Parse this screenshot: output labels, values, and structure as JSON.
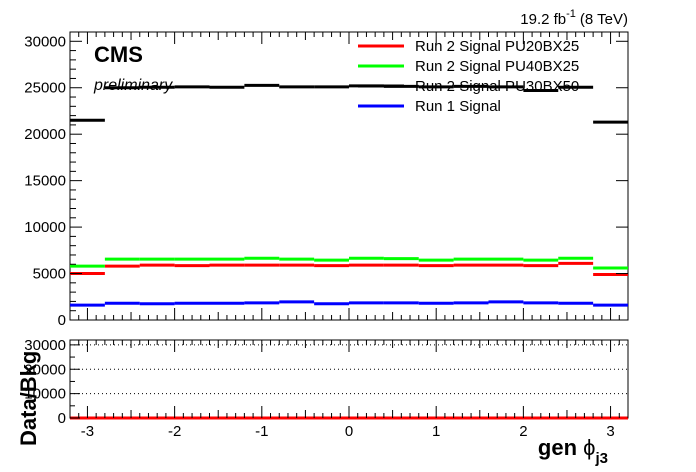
{
  "header": {
    "lumi_value": "19.2 fb",
    "lumi_exp": "-1",
    "lumi_energy": "(8 TeV)"
  },
  "labels": {
    "experiment": "CMS",
    "status": "preliminary"
  },
  "x_axis": {
    "title_main": "gen ",
    "title_greek": "ϕ",
    "title_sub": "j3"
  },
  "ratio_axis": {
    "title": "Data/Bkg"
  },
  "colors": {
    "run2_pu20": "#ff0000",
    "run2_pu40": "#00ff00",
    "run2_pu30": "#000000",
    "run1": "#0000ff"
  },
  "chart_data": [
    {
      "type": "histogram",
      "xlim": [
        -3.2,
        3.2
      ],
      "ylim": [
        0,
        31000
      ],
      "x_ticks": [
        -3,
        -2,
        -1,
        0,
        1,
        2,
        3
      ],
      "x_tick_labels": [
        "-3",
        "-2",
        "-1",
        "0",
        "1",
        "2",
        "3"
      ],
      "y_ticks": [
        0,
        5000,
        10000,
        15000,
        20000,
        25000,
        30000
      ],
      "y_tick_labels": [
        "0",
        "5000",
        "10000",
        "15000",
        "20000",
        "25000",
        "30000"
      ],
      "legend_position": "top-right",
      "bin_edges": [
        -3.2,
        -2.8,
        -2.4,
        -2.0,
        -1.6,
        -1.2,
        -0.8,
        -0.4,
        0.0,
        0.4,
        0.8,
        1.2,
        1.6,
        2.0,
        2.4,
        2.8,
        3.2
      ],
      "series": [
        {
          "name": "Run 2 Signal PU20BX25",
          "color": "#ff0000",
          "values": [
            5000,
            5800,
            5900,
            5850,
            5900,
            5900,
            5900,
            5850,
            5900,
            5900,
            5850,
            5900,
            5900,
            5850,
            6100,
            4900
          ]
        },
        {
          "name": "Run 2 Signal PU40BX25",
          "color": "#00ff00",
          "values": [
            5800,
            6550,
            6550,
            6550,
            6550,
            6650,
            6550,
            6450,
            6650,
            6600,
            6450,
            6550,
            6550,
            6450,
            6650,
            5600
          ]
        },
        {
          "name": "Run 2 Signal PU30BX50",
          "color": "#000000",
          "values": [
            21500,
            25000,
            25050,
            25100,
            25050,
            25250,
            25100,
            25100,
            25200,
            25150,
            25100,
            25150,
            25100,
            24700,
            25050,
            21300
          ]
        },
        {
          "name": "Run 1 Signal",
          "color": "#0000ff",
          "values": [
            1600,
            1800,
            1750,
            1800,
            1800,
            1850,
            1950,
            1750,
            1850,
            1850,
            1800,
            1850,
            1950,
            1850,
            1800,
            1600
          ]
        }
      ]
    },
    {
      "type": "histogram",
      "xlim": [
        -3.2,
        3.2
      ],
      "ylim": [
        0,
        32000
      ],
      "y_ticks": [
        0,
        10000,
        20000,
        30000
      ],
      "y_tick_labels": [
        "0",
        "10000",
        "20000",
        "30000"
      ],
      "gridlines_y": [
        10000,
        20000,
        30000
      ],
      "grid": "horizontal-dotted",
      "ratio_line": {
        "color": "#ff0000",
        "value": 0
      }
    }
  ]
}
